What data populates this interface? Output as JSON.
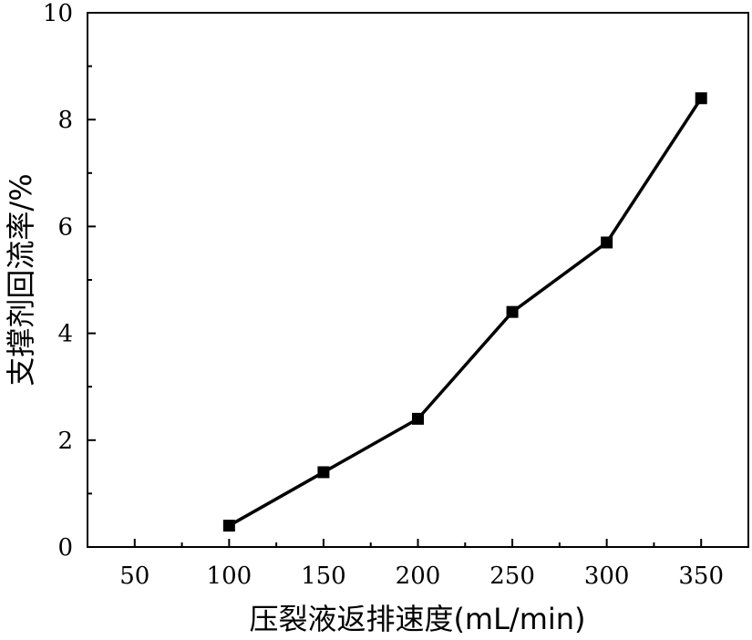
{
  "chart_data": {
    "type": "line",
    "title": "",
    "xlabel": "压裂液返排速度(mL/min)",
    "ylabel": "支撑剂回流率/%",
    "xlim": [
      25,
      375
    ],
    "ylim": [
      0,
      10
    ],
    "x_ticks": [
      50,
      100,
      150,
      200,
      250,
      300,
      350
    ],
    "y_ticks": [
      0,
      2,
      4,
      6,
      8,
      10
    ],
    "grid": false,
    "legend": "none",
    "series": [
      {
        "x": [
          100,
          150,
          200,
          250,
          300,
          350
        ],
        "y": [
          0.4,
          1.4,
          2.4,
          4.4,
          5.7,
          8.4
        ],
        "color": "#000000",
        "marker": "square"
      }
    ]
  }
}
